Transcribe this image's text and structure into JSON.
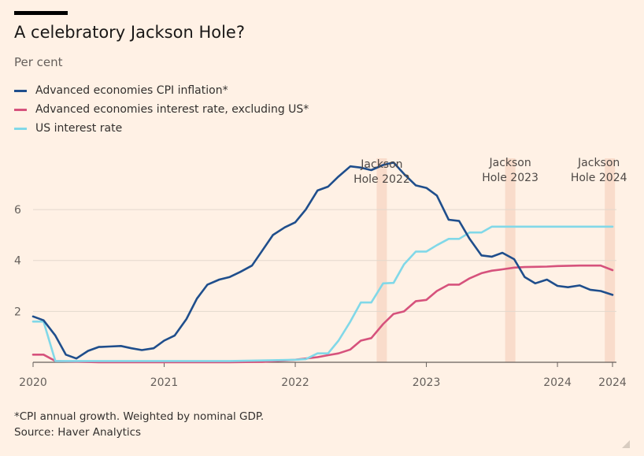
{
  "title": "A celebratory Jackson Hole?",
  "subtitle": "Per cent",
  "footnote": "*CPI annual growth. Weighted by nominal GDP.",
  "source": "Source: Haver Analytics",
  "chart_data": {
    "type": "line",
    "title": "A celebratory Jackson Hole?",
    "ylabel": "Per cent",
    "xlabel": "",
    "xlim": [
      2020.0,
      2024.45
    ],
    "ylim": [
      0,
      8.2
    ],
    "yticks": [
      2,
      4,
      6
    ],
    "xticks": [
      {
        "value": 2020,
        "label": "2020"
      },
      {
        "value": 2021,
        "label": "2021"
      },
      {
        "value": 2022,
        "label": "2022"
      },
      {
        "value": 2023,
        "label": "2023"
      },
      {
        "value": 2024,
        "label": "2024"
      },
      {
        "value": 2024.42,
        "label": "2024"
      }
    ],
    "grid": true,
    "legend_position": "top-left",
    "bands": [
      {
        "x": 2022.66,
        "label_lines": [
          "Jackson",
          "Hole 2022"
        ]
      },
      {
        "x": 2023.64,
        "label_lines": [
          "Jackson",
          "Hole 2023"
        ]
      },
      {
        "x": 2024.4,
        "label_lines": [
          "Jackson",
          "Hole 2024"
        ]
      }
    ],
    "series": [
      {
        "name": "Advanced economies CPI inflation*",
        "color": "#1f4e8c",
        "x": [
          2020.0,
          2020.08,
          2020.17,
          2020.25,
          2020.33,
          2020.42,
          2020.5,
          2020.58,
          2020.67,
          2020.75,
          2020.83,
          2020.92,
          2021.0,
          2021.08,
          2021.17,
          2021.25,
          2021.33,
          2021.42,
          2021.5,
          2021.58,
          2021.67,
          2021.75,
          2021.83,
          2021.92,
          2022.0,
          2022.08,
          2022.17,
          2022.25,
          2022.33,
          2022.42,
          2022.5,
          2022.58,
          2022.67,
          2022.75,
          2022.83,
          2022.92,
          2023.0,
          2023.08,
          2023.17,
          2023.25,
          2023.33,
          2023.42,
          2023.5,
          2023.58,
          2023.67,
          2023.75,
          2023.83,
          2023.92,
          2024.0,
          2024.08,
          2024.17,
          2024.25,
          2024.33,
          2024.42
        ],
        "y": [
          1.8,
          1.65,
          1.05,
          0.3,
          0.15,
          0.45,
          0.6,
          0.62,
          0.64,
          0.55,
          0.48,
          0.55,
          0.85,
          1.05,
          1.7,
          2.5,
          3.05,
          3.25,
          3.35,
          3.55,
          3.8,
          4.4,
          5.0,
          5.3,
          5.5,
          6.0,
          6.75,
          6.9,
          7.3,
          7.7,
          7.65,
          7.55,
          7.75,
          7.85,
          7.4,
          6.95,
          6.85,
          6.55,
          5.6,
          5.55,
          4.85,
          4.2,
          4.15,
          4.3,
          4.05,
          3.35,
          3.1,
          3.25,
          3.0,
          2.95,
          3.02,
          2.85,
          2.8,
          2.65
        ]
      },
      {
        "name": "Advanced economies interest rate, excluding US*",
        "color": "#d6527c",
        "x": [
          2020.0,
          2020.08,
          2020.17,
          2020.5,
          2020.75,
          2021.0,
          2021.25,
          2021.5,
          2021.75,
          2022.0,
          2022.17,
          2022.25,
          2022.33,
          2022.42,
          2022.5,
          2022.58,
          2022.67,
          2022.75,
          2022.83,
          2022.92,
          2023.0,
          2023.08,
          2023.17,
          2023.25,
          2023.33,
          2023.42,
          2023.5,
          2023.58,
          2023.67,
          2023.75,
          2023.83,
          2023.92,
          2024.0,
          2024.17,
          2024.33,
          2024.42
        ],
        "y": [
          0.3,
          0.3,
          0.05,
          0.0,
          0.0,
          0.0,
          0.0,
          0.0,
          0.02,
          0.1,
          0.2,
          0.28,
          0.35,
          0.5,
          0.85,
          0.95,
          1.5,
          1.9,
          2.0,
          2.4,
          2.45,
          2.8,
          3.05,
          3.05,
          3.3,
          3.5,
          3.6,
          3.65,
          3.72,
          3.74,
          3.75,
          3.76,
          3.78,
          3.8,
          3.8,
          3.62
        ]
      },
      {
        "name": "US interest rate",
        "color": "#81d8e8",
        "x": [
          2020.0,
          2020.08,
          2020.17,
          2020.5,
          2021.0,
          2021.5,
          2021.83,
          2022.0,
          2022.08,
          2022.17,
          2022.25,
          2022.33,
          2022.42,
          2022.5,
          2022.58,
          2022.67,
          2022.75,
          2022.83,
          2022.92,
          2023.0,
          2023.08,
          2023.17,
          2023.25,
          2023.33,
          2023.42,
          2023.5,
          2023.58,
          2023.67,
          2023.75,
          2023.83,
          2024.0,
          2024.25,
          2024.42
        ],
        "y": [
          1.6,
          1.6,
          0.05,
          0.05,
          0.05,
          0.05,
          0.08,
          0.1,
          0.12,
          0.35,
          0.35,
          0.85,
          1.6,
          2.35,
          2.35,
          3.1,
          3.12,
          3.85,
          4.35,
          4.35,
          4.6,
          4.85,
          4.85,
          5.1,
          5.1,
          5.33,
          5.33,
          5.33,
          5.33,
          5.33,
          5.33,
          5.33,
          5.33
        ]
      }
    ]
  }
}
